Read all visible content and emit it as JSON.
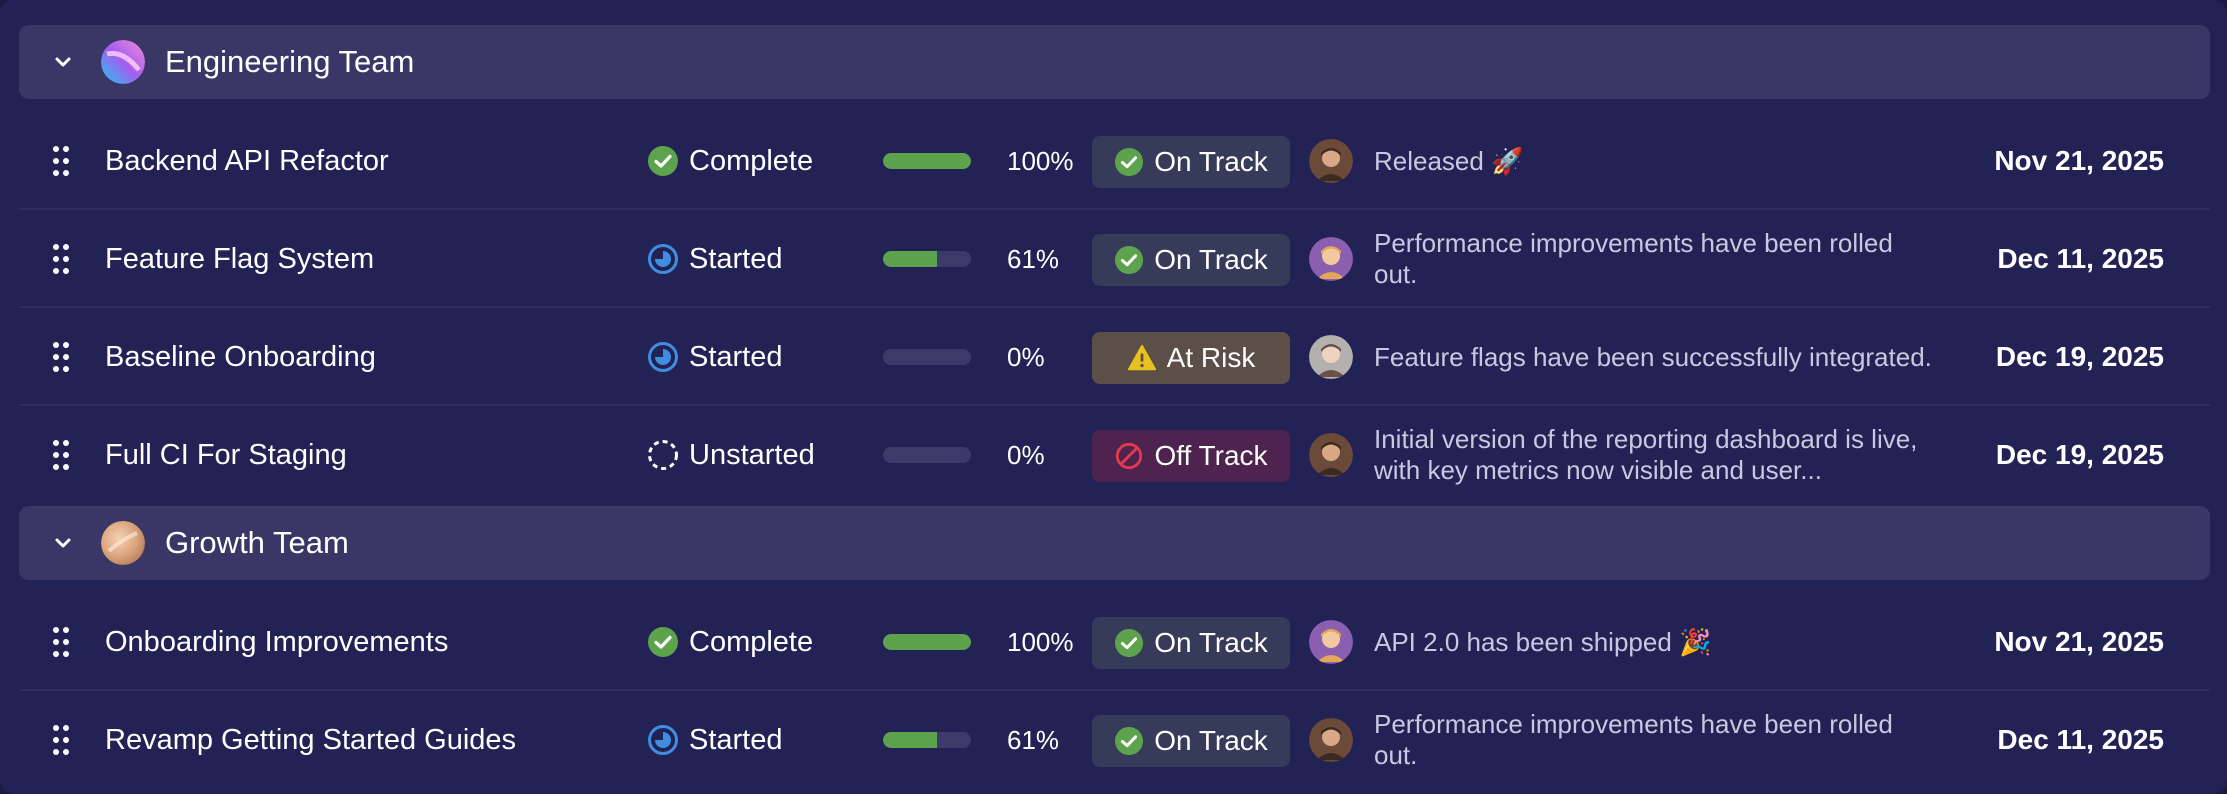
{
  "groups": [
    {
      "name": "Engineering Team",
      "avatar_icon": "gradient-orb-icon",
      "rows": [
        {
          "project": "Backend API Refactor",
          "status": "Complete",
          "status_icon": "check-circle-icon",
          "progress": 100,
          "progress_label": "100%",
          "health": "On Track",
          "health_icon": "check-circle-icon",
          "update": "Released 🚀",
          "date": "Nov 21, 2025"
        },
        {
          "project": "Feature Flag System",
          "status": "Started",
          "status_icon": "partial-circle-icon",
          "progress": 61,
          "progress_label": "61%",
          "health": "On Track",
          "health_icon": "check-circle-icon",
          "update": "Performance improvements have been rolled out.",
          "date": "Dec 11, 2025"
        },
        {
          "project": "Baseline Onboarding",
          "status": "Started",
          "status_icon": "partial-circle-icon",
          "progress": 0,
          "progress_label": "0%",
          "health": "At Risk",
          "health_icon": "warning-triangle-icon",
          "update": "Feature flags have been successfully integrated.",
          "date": "Dec 19, 2025"
        },
        {
          "project": "Full CI For Staging",
          "status": "Unstarted",
          "status_icon": "dashed-circle-icon",
          "progress": 0,
          "progress_label": "0%",
          "health": "Off Track",
          "health_icon": "prohibited-icon",
          "update": "Initial version of the reporting dashboard is live, with key metrics now visible and user...",
          "date": "Dec 19, 2025"
        }
      ]
    },
    {
      "name": "Growth Team",
      "avatar_icon": "peach-orb-icon",
      "rows": [
        {
          "project": "Onboarding Improvements",
          "status": "Complete",
          "status_icon": "check-circle-icon",
          "progress": 100,
          "progress_label": "100%",
          "health": "On Track",
          "health_icon": "check-circle-icon",
          "update": "API 2.0 has been shipped 🎉",
          "date": "Nov 21, 2025"
        },
        {
          "project": "Revamp Getting Started Guides",
          "status": "Started",
          "status_icon": "partial-circle-icon",
          "progress": 61,
          "progress_label": "61%",
          "health": "On Track",
          "health_icon": "check-circle-icon",
          "update": "Performance improvements have been rolled out.",
          "date": "Dec 11, 2025"
        }
      ]
    }
  ],
  "colors": {
    "complete": "#5da24c",
    "started": "#3f8ee0",
    "risk": "#e7c21e",
    "off": "#e23a4c"
  }
}
